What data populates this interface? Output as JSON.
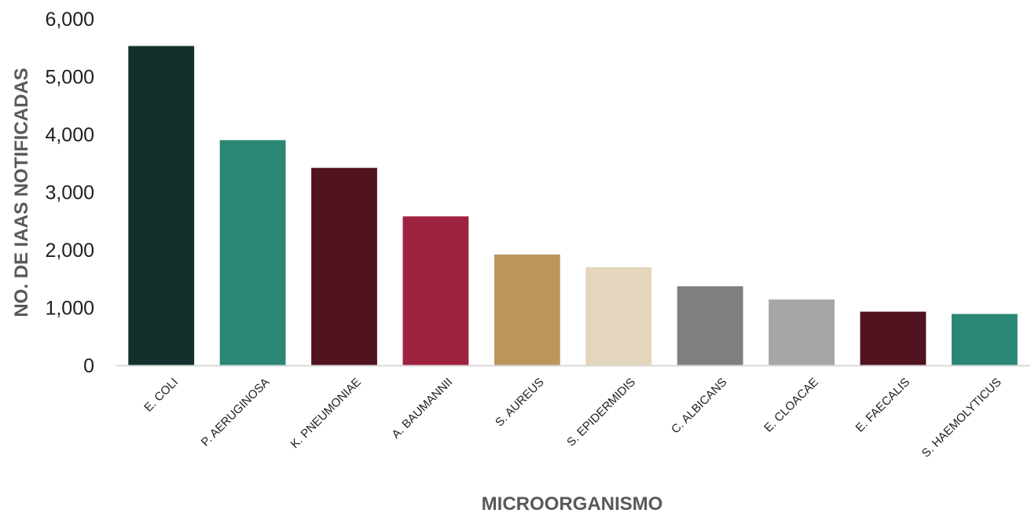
{
  "chart_data": {
    "type": "bar",
    "title": "",
    "xlabel": "MICROORGANISMO",
    "ylabel": "NO. DE IAAS NOTIFICADAS",
    "ylim": [
      0,
      6000
    ],
    "yticks": [
      0,
      1000,
      2000,
      3000,
      4000,
      5000,
      6000
    ],
    "ytick_labels": [
      "0",
      "1,000",
      "2,000",
      "3,000",
      "4,000",
      "5,000",
      "6,000"
    ],
    "grid": false,
    "legend": "none",
    "categories": [
      "E. COLI",
      "P. AERUGINOSA",
      "K. PNEUMONIAE",
      "A. BAUMANNII",
      "S. AUREUS",
      "S. EPIDERMIDIS",
      "C. ALBICANS",
      "E. CLOACAE",
      "E. FAECALIS",
      "S. HAEMOLYTICUS"
    ],
    "values": [
      5530,
      3900,
      3420,
      2580,
      1920,
      1700,
      1370,
      1140,
      930,
      890
    ],
    "colors": [
      "#13312c",
      "#2a8775",
      "#511320",
      "#9e2240",
      "#bc955d",
      "#e3d6bd",
      "#7f7f7f",
      "#a6a6a6",
      "#511320",
      "#2a8775"
    ],
    "axis_color": "#d9d9d9"
  }
}
